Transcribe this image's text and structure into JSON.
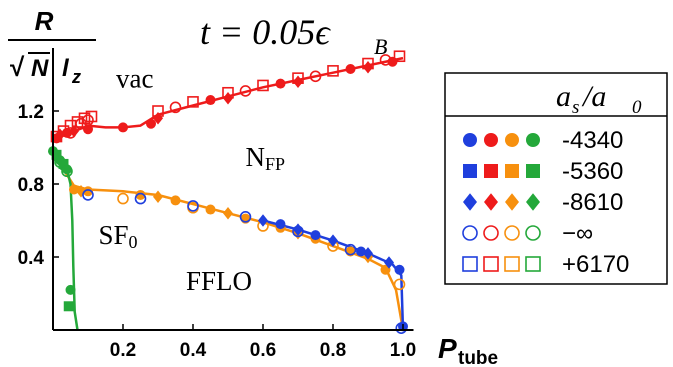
{
  "chart_data": {
    "type": "scatter",
    "title_math": "t = 0.05ϵ",
    "title_sub": "B",
    "ylabel_num": "R",
    "ylabel_den_sqrt": "√",
    "ylabel_den_n": "N",
    "ylabel_den_l": "l",
    "ylabel_den_sub": "z",
    "xlabel": "P",
    "xlabel_sub": "tube",
    "xlim": [
      0,
      1.0
    ],
    "ylim": [
      0,
      1.6
    ],
    "xticks": [
      {
        "value": 0.2,
        "label": "0.2"
      },
      {
        "value": 0.4,
        "label": "0.4"
      },
      {
        "value": 0.6,
        "label": "0.6"
      },
      {
        "value": 0.8,
        "label": "0.8"
      },
      {
        "value": 1.0,
        "label": "1.0"
      }
    ],
    "yticks": [
      {
        "value": 0.4,
        "label": "0.4"
      },
      {
        "value": 0.8,
        "label": "0.8"
      },
      {
        "value": 1.2,
        "label": "1.2"
      }
    ],
    "region_labels": [
      {
        "text": "vac",
        "x": 0.18,
        "y": 1.33
      },
      {
        "text": "N",
        "sub": "FP",
        "x": 0.55,
        "y": 0.9
      },
      {
        "text": "SF",
        "sub": "0",
        "x": 0.13,
        "y": 0.47
      },
      {
        "text": "FFLO",
        "x": 0.38,
        "y": 0.22
      }
    ],
    "legend": {
      "header": "a",
      "header_sub1": "s",
      "header_slash": "/a",
      "header_sub2": "0",
      "entries": [
        {
          "marker": "circle-filled",
          "label": "-4340"
        },
        {
          "marker": "square-filled",
          "label": "-5360"
        },
        {
          "marker": "diamond-filled",
          "label": "-8610"
        },
        {
          "marker": "circle-open",
          "label": "−∞"
        },
        {
          "marker": "square-open",
          "label": "+6170"
        }
      ],
      "colors": [
        "#1f3fdd",
        "#ee1b1b",
        "#f7900e",
        "#24a83a"
      ]
    },
    "colors": {
      "blue": "#1f3fdd",
      "red": "#ee1b1b",
      "orange": "#f7900e",
      "green": "#24a83a"
    },
    "curves": [
      {
        "color": "red",
        "points": [
          [
            0.0,
            1.06
          ],
          [
            0.05,
            1.08
          ],
          [
            0.1,
            1.12
          ],
          [
            0.15,
            1.11
          ],
          [
            0.2,
            1.11
          ],
          [
            0.25,
            1.12
          ],
          [
            0.3,
            1.18
          ],
          [
            0.4,
            1.23
          ],
          [
            0.5,
            1.28
          ],
          [
            0.6,
            1.33
          ],
          [
            0.7,
            1.37
          ],
          [
            0.8,
            1.41
          ],
          [
            0.9,
            1.45
          ],
          [
            1.0,
            1.49
          ]
        ]
      },
      {
        "color": "orange",
        "points": [
          [
            0.0,
            1.0
          ],
          [
            0.03,
            0.88
          ],
          [
            0.06,
            0.79
          ],
          [
            0.1,
            0.77
          ],
          [
            0.2,
            0.76
          ],
          [
            0.3,
            0.74
          ],
          [
            0.4,
            0.69
          ],
          [
            0.5,
            0.64
          ],
          [
            0.6,
            0.59
          ],
          [
            0.7,
            0.53
          ],
          [
            0.8,
            0.46
          ],
          [
            0.9,
            0.39
          ],
          [
            0.95,
            0.34
          ],
          [
            0.98,
            0.22
          ],
          [
            1.0,
            0.0
          ]
        ]
      },
      {
        "color": "blue",
        "points": [
          [
            0.6,
            0.6
          ],
          [
            0.7,
            0.55
          ],
          [
            0.8,
            0.49
          ],
          [
            0.9,
            0.42
          ],
          [
            0.97,
            0.36
          ],
          [
            0.995,
            0.3
          ],
          [
            1.0,
            0.0
          ]
        ]
      },
      {
        "color": "green",
        "points": [
          [
            0.0,
            0.98
          ],
          [
            0.02,
            0.94
          ],
          [
            0.04,
            0.88
          ],
          [
            0.05,
            0.8
          ],
          [
            0.055,
            0.6
          ],
          [
            0.058,
            0.35
          ],
          [
            0.062,
            0.1
          ],
          [
            0.07,
            0.0
          ]
        ]
      }
    ],
    "scatter": [
      {
        "color": "red",
        "marker": "square-open",
        "points": [
          [
            0.01,
            1.06
          ],
          [
            0.03,
            1.09
          ],
          [
            0.05,
            1.12
          ],
          [
            0.07,
            1.14
          ],
          [
            0.09,
            1.16
          ],
          [
            0.11,
            1.17
          ],
          [
            0.3,
            1.2
          ],
          [
            0.4,
            1.25
          ],
          [
            0.5,
            1.3
          ],
          [
            0.6,
            1.34
          ],
          [
            0.7,
            1.38
          ],
          [
            0.8,
            1.42
          ],
          [
            0.9,
            1.46
          ],
          [
            0.99,
            1.5
          ]
        ]
      },
      {
        "color": "red",
        "marker": "circle-open",
        "points": [
          [
            0.05,
            1.08
          ],
          [
            0.08,
            1.13
          ],
          [
            0.1,
            1.15
          ],
          [
            0.35,
            1.22
          ],
          [
            0.55,
            1.31
          ],
          [
            0.75,
            1.39
          ],
          [
            0.95,
            1.48
          ]
        ]
      },
      {
        "color": "red",
        "marker": "circle-filled",
        "points": [
          [
            0.01,
            1.05
          ],
          [
            0.04,
            1.08
          ],
          [
            0.1,
            1.1
          ],
          [
            0.2,
            1.11
          ],
          [
            0.28,
            1.13
          ],
          [
            0.45,
            1.26
          ],
          [
            0.65,
            1.35
          ],
          [
            0.85,
            1.43
          ],
          [
            0.97,
            1.47
          ]
        ]
      },
      {
        "color": "red",
        "marker": "diamond-filled",
        "points": [
          [
            0.02,
            1.07
          ],
          [
            0.06,
            1.09
          ],
          [
            0.3,
            1.16
          ],
          [
            0.5,
            1.27
          ],
          [
            0.7,
            1.36
          ],
          [
            0.9,
            1.44
          ]
        ]
      },
      {
        "color": "green",
        "marker": "circle-filled",
        "points": [
          [
            0.0,
            0.98
          ],
          [
            0.01,
            0.95
          ],
          [
            0.02,
            0.93
          ],
          [
            0.03,
            0.9
          ],
          [
            0.04,
            0.88
          ],
          [
            0.05,
            0.22
          ]
        ]
      },
      {
        "color": "green",
        "marker": "square-filled",
        "points": [
          [
            0.01,
            0.96
          ],
          [
            0.03,
            0.91
          ],
          [
            0.045,
            0.13
          ]
        ]
      },
      {
        "color": "green",
        "marker": "circle-open",
        "points": [
          [
            0.02,
            0.92
          ],
          [
            0.04,
            0.87
          ]
        ]
      },
      {
        "color": "orange",
        "marker": "circle-filled",
        "points": [
          [
            0.06,
            0.77
          ],
          [
            0.1,
            0.76
          ],
          [
            0.25,
            0.74
          ],
          [
            0.35,
            0.71
          ],
          [
            0.45,
            0.66
          ],
          [
            0.55,
            0.61
          ],
          [
            0.65,
            0.56
          ],
          [
            0.75,
            0.5
          ],
          [
            0.85,
            0.43
          ],
          [
            0.95,
            0.33
          ]
        ]
      },
      {
        "color": "orange",
        "marker": "diamond-filled",
        "points": [
          [
            0.08,
            0.76
          ],
          [
            0.3,
            0.73
          ],
          [
            0.5,
            0.64
          ],
          [
            0.7,
            0.53
          ],
          [
            0.9,
            0.4
          ]
        ]
      },
      {
        "color": "orange",
        "marker": "circle-open",
        "points": [
          [
            0.2,
            0.72
          ],
          [
            0.4,
            0.67
          ],
          [
            0.6,
            0.57
          ],
          [
            0.8,
            0.46
          ],
          [
            0.99,
            0.25
          ]
        ]
      },
      {
        "color": "blue",
        "marker": "circle-open",
        "points": [
          [
            0.1,
            0.74
          ],
          [
            0.25,
            0.72
          ],
          [
            0.4,
            0.68
          ],
          [
            0.55,
            0.62
          ],
          [
            0.7,
            0.54
          ],
          [
            0.85,
            0.44
          ]
        ]
      },
      {
        "color": "blue",
        "marker": "diamond-filled",
        "points": [
          [
            0.6,
            0.6
          ],
          [
            0.7,
            0.55
          ],
          [
            0.8,
            0.49
          ],
          [
            0.9,
            0.42
          ],
          [
            0.96,
            0.37
          ]
        ]
      },
      {
        "color": "blue",
        "marker": "circle-filled",
        "points": [
          [
            0.65,
            0.58
          ],
          [
            0.75,
            0.52
          ],
          [
            0.88,
            0.43
          ],
          [
            0.99,
            0.33
          ],
          [
            1.0,
            0.02
          ]
        ]
      },
      {
        "color": "blue",
        "marker": "circle-open",
        "points": [
          [
            0.995,
            0.01
          ]
        ]
      }
    ]
  }
}
